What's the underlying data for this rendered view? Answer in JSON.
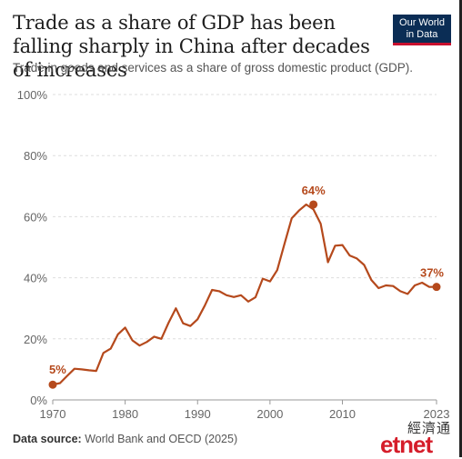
{
  "header": {
    "title": "Trade as a share of GDP has been falling sharply in China after decades of increases",
    "subtitle": "Trade in goods and services as a share of gross domestic product (GDP).",
    "logo_line1": "Our World",
    "logo_line2": "in Data"
  },
  "footer": {
    "source_label": "Data source:",
    "source_text": "World Bank and OECD (2025)"
  },
  "watermark": {
    "chinese": "經濟通",
    "brand": "etnet"
  },
  "colors": {
    "series": "#b5491c",
    "grid": "#dddddd",
    "text": "#666666"
  },
  "chart_data": {
    "type": "line",
    "title": "Trade as a share of GDP has been falling sharply in China after decades of increases",
    "subtitle": "Trade in goods and services as a share of gross domestic product (GDP).",
    "xlim": [
      1970,
      2023
    ],
    "ylim": [
      0,
      100
    ],
    "x_ticks": [
      "1970",
      "1980",
      "1990",
      "2000",
      "2010",
      "2023"
    ],
    "y_ticks": [
      "0%",
      "20%",
      "40%",
      "60%",
      "80%",
      "100%"
    ],
    "grid": true,
    "x": [
      1970,
      1971,
      1972,
      1973,
      1974,
      1975,
      1976,
      1977,
      1978,
      1979,
      1980,
      1981,
      1982,
      1983,
      1984,
      1985,
      1986,
      1987,
      1988,
      1989,
      1990,
      1991,
      1992,
      1993,
      1994,
      1995,
      1996,
      1997,
      1998,
      1999,
      2000,
      2001,
      2002,
      2003,
      2004,
      2005,
      2006,
      2007,
      2008,
      2009,
      2010,
      2011,
      2012,
      2013,
      2014,
      2015,
      2016,
      2017,
      2018,
      2019,
      2020,
      2021,
      2022,
      2023
    ],
    "values": [
      5,
      5.5,
      7.9,
      10.2,
      10.0,
      9.7,
      9.5,
      15.4,
      16.8,
      21.5,
      23.7,
      19.5,
      17.8,
      19.0,
      20.7,
      20.0,
      25.3,
      30.0,
      25.1,
      24.2,
      26.4,
      30.9,
      36.0,
      35.6,
      34.3,
      33.7,
      34.3,
      32.2,
      33.6,
      39.7,
      38.8,
      42.5,
      51.1,
      59.5,
      62.0,
      64.0,
      62.4,
      57.7,
      45.1,
      50.5,
      50.7,
      47.3,
      46.3,
      44.2,
      39.3,
      36.6,
      37.5,
      37.3,
      35.6,
      34.7,
      37.5,
      38.4,
      37.0,
      37.0
    ],
    "labels": [
      {
        "text": "5%",
        "x": 1970,
        "y": 5
      },
      {
        "text": "64%",
        "x": 2006,
        "y": 64
      },
      {
        "text": "37%",
        "x": 2023,
        "y": 37
      }
    ]
  }
}
